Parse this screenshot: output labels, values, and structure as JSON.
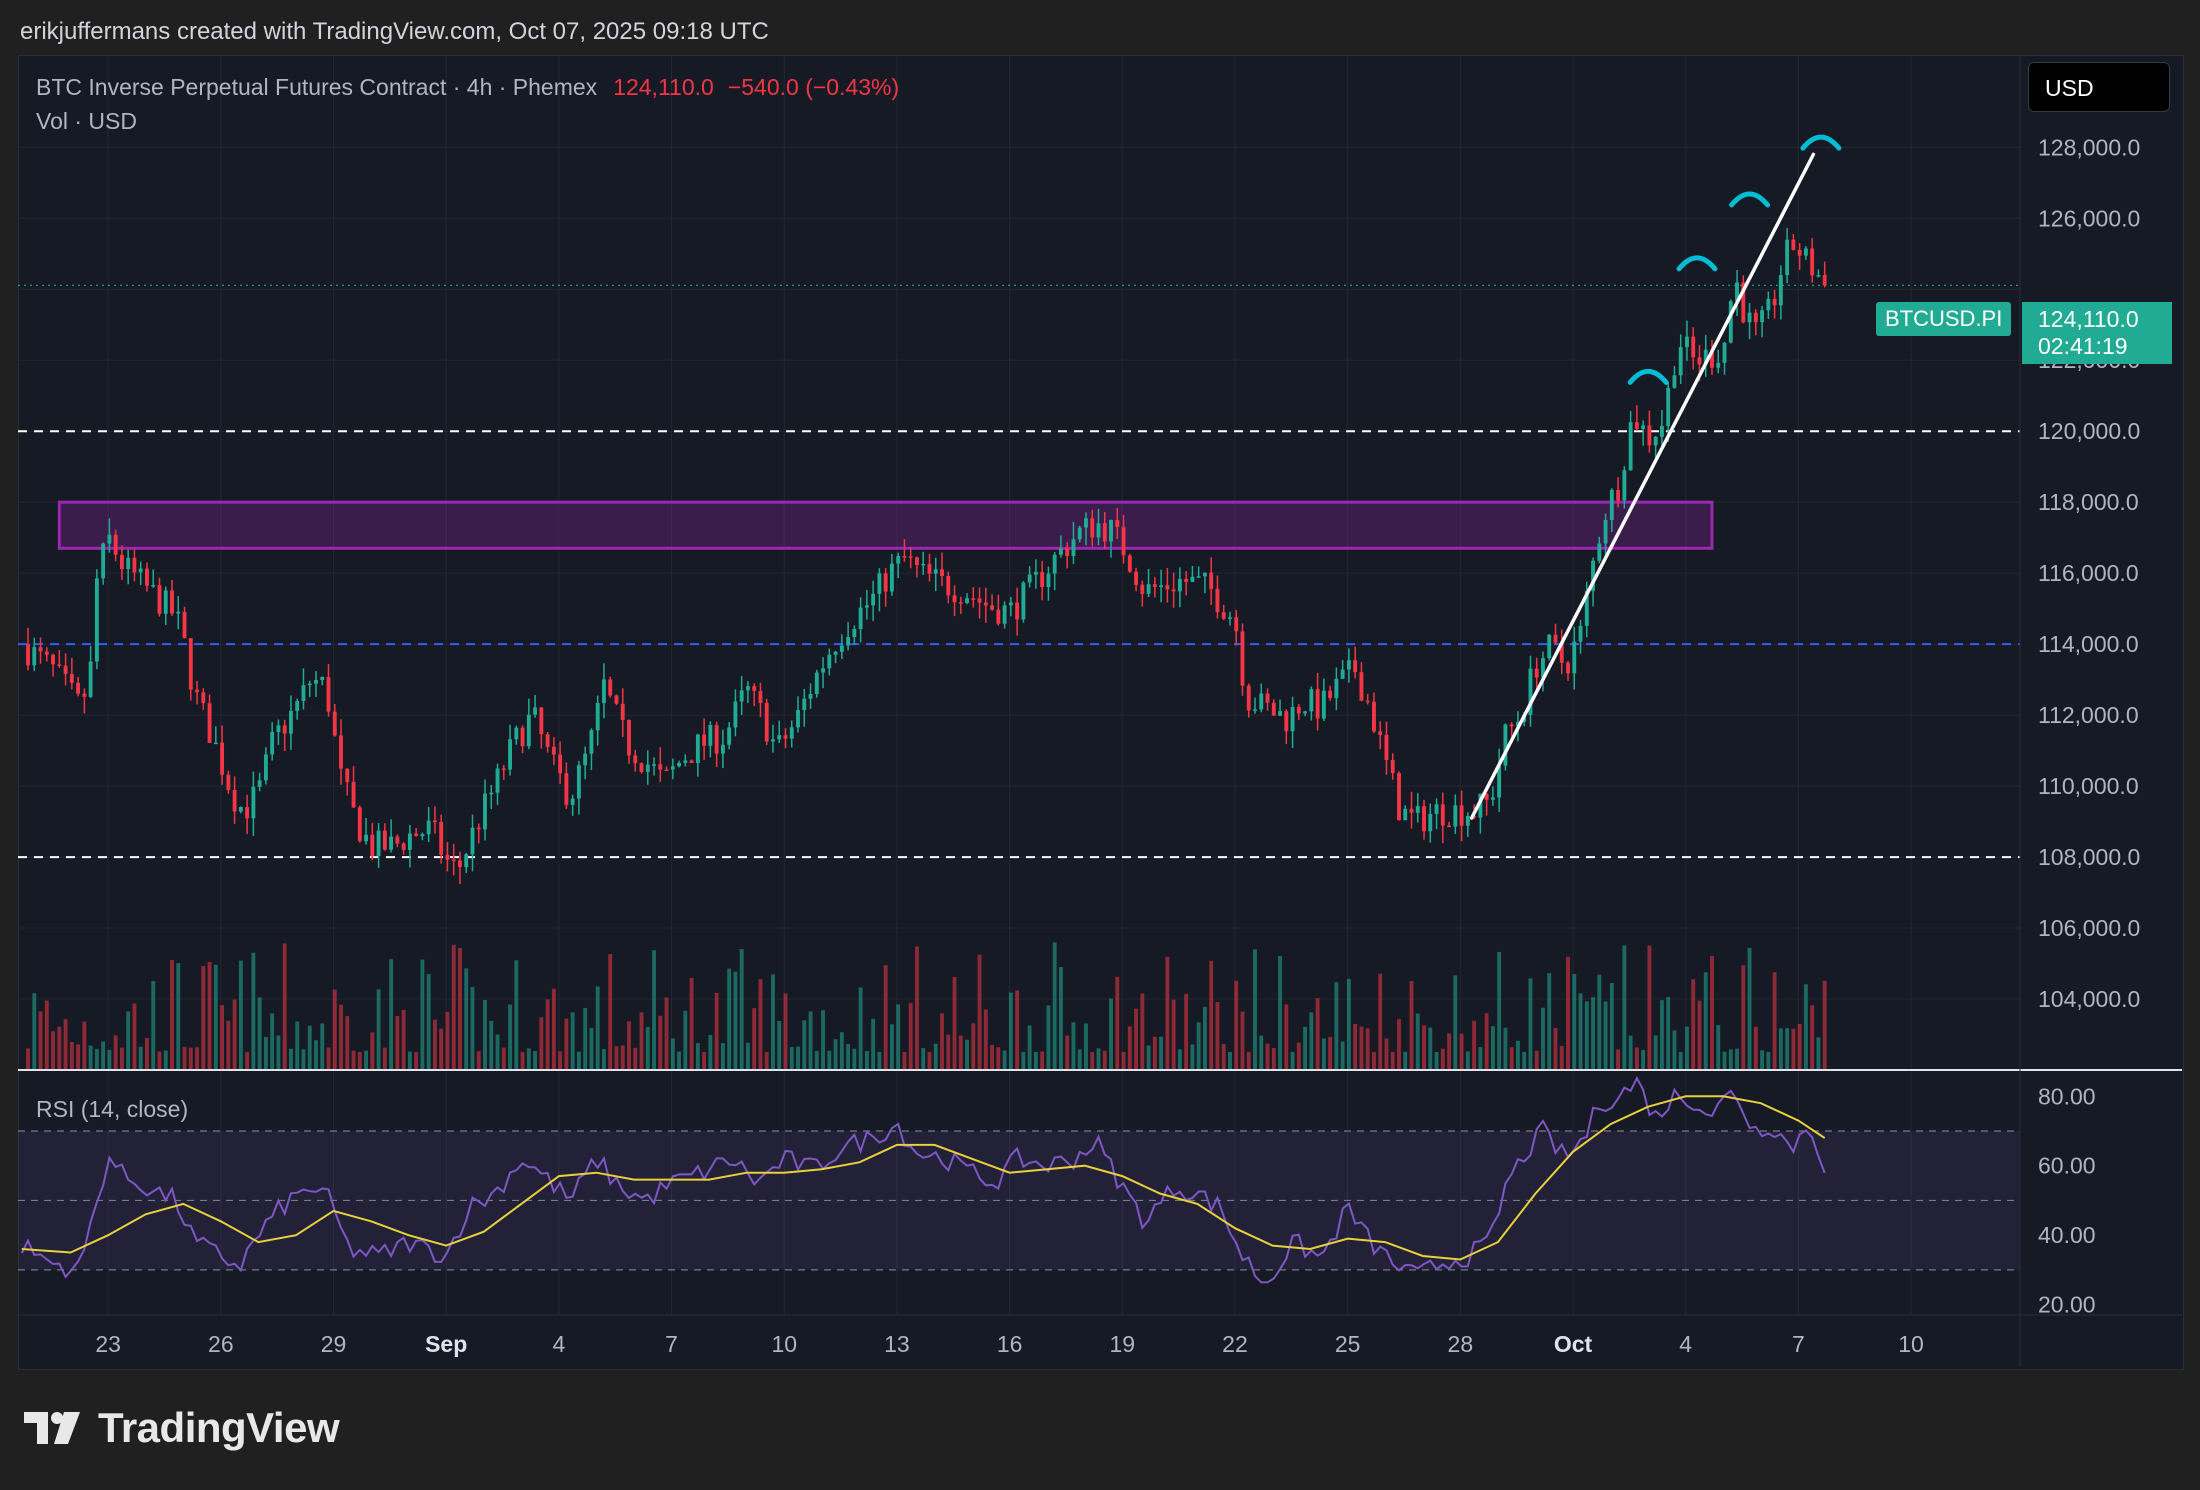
{
  "header": {
    "attribution": "erikjuffermans created with TradingView.com, Oct 07, 2025 09:18 UTC"
  },
  "legend": {
    "symbol_line": "BTC Inverse Perpetual Futures Contract · 4h · Phemex",
    "last_price": "124,110.0",
    "change": "−540.0 (−0.43%)",
    "volume_line": "Vol · USD"
  },
  "currency_button": "USD",
  "symbol_tag": "BTCUSD.PI",
  "price_tag": {
    "price": "124,110.0",
    "countdown": "02:41:19"
  },
  "rsi_label": "RSI (14, close)",
  "footer": {
    "brand": "TradingView"
  },
  "colors": {
    "up": "#22ab94",
    "down": "#f23645",
    "zone": "#9c27b0",
    "rsi": "#7e57c2",
    "rsi_ma": "#e8d13a",
    "arc": "#00bcd4"
  },
  "chart_data": [
    {
      "type": "candlestick",
      "timeframe": "4h",
      "price_axis_ticks": [
        "128,000.0",
        "126,000.0",
        "122,000.0",
        "120,000.0",
        "118,000.0",
        "116,000.0",
        "114,000.0",
        "112,000.0",
        "110,000.0",
        "108,000.0",
        "106,000.0",
        "104,000.0"
      ],
      "price_axis_clipped_top": "130,000.0",
      "ylim": [
        102000,
        130600
      ],
      "x_ticks": [
        "23",
        "26",
        "29",
        "Sep",
        "4",
        "7",
        "10",
        "13",
        "16",
        "19",
        "22",
        "25",
        "28",
        "Oct",
        "4",
        "7",
        "10"
      ],
      "x_tick_days": [
        0,
        3,
        6,
        9,
        12,
        15,
        18,
        21,
        24,
        27,
        30,
        33,
        36,
        39,
        42,
        45,
        48
      ],
      "x_range_days": [
        -2.4,
        50.9
      ],
      "price_path": [
        [
          -2.3,
          114000
        ],
        [
          -1.5,
          113300
        ],
        [
          -0.8,
          112300
        ],
        [
          -0.5,
          112800
        ],
        [
          -0.3,
          115800
        ],
        [
          0,
          117000
        ],
        [
          0.4,
          116200
        ],
        [
          1,
          115600
        ],
        [
          1.8,
          114800
        ],
        [
          2,
          114100
        ],
        [
          2.3,
          112600
        ],
        [
          2.8,
          111300
        ],
        [
          3.3,
          109800
        ],
        [
          3.6,
          109300
        ],
        [
          4,
          109800
        ],
        [
          4.4,
          111300
        ],
        [
          5,
          112200
        ],
        [
          5.4,
          113000
        ],
        [
          5.8,
          112800
        ],
        [
          6.2,
          110200
        ],
        [
          6.6,
          109000
        ],
        [
          7,
          108300
        ],
        [
          7.6,
          108300
        ],
        [
          8,
          108600
        ],
        [
          8.6,
          108800
        ],
        [
          9,
          107900
        ],
        [
          9.3,
          107600
        ],
        [
          9.8,
          108900
        ],
        [
          10.3,
          110000
        ],
        [
          10.8,
          111200
        ],
        [
          11.3,
          112000
        ],
        [
          11.8,
          110600
        ],
        [
          12.3,
          109700
        ],
        [
          12.8,
          111000
        ],
        [
          13.2,
          112800
        ],
        [
          13.8,
          111200
        ],
        [
          14.4,
          110600
        ],
        [
          14.8,
          110100
        ],
        [
          15.3,
          110800
        ],
        [
          15.8,
          111200
        ],
        [
          16.4,
          111400
        ],
        [
          17,
          112700
        ],
        [
          17.4,
          112000
        ],
        [
          17.8,
          111000
        ],
        [
          18.3,
          111800
        ],
        [
          18.8,
          113000
        ],
        [
          19.3,
          114000
        ],
        [
          19.8,
          114700
        ],
        [
          20.3,
          115200
        ],
        [
          20.8,
          116000
        ],
        [
          21.2,
          116400
        ],
        [
          21.6,
          116000
        ],
        [
          22.2,
          115700
        ],
        [
          22.8,
          115500
        ],
        [
          23.4,
          115100
        ],
        [
          24,
          114900
        ],
        [
          24.6,
          115600
        ],
        [
          25.2,
          116400
        ],
        [
          25.8,
          117100
        ],
        [
          26.3,
          117400
        ],
        [
          26.7,
          117200
        ],
        [
          27.1,
          116600
        ],
        [
          27.6,
          115500
        ],
        [
          28,
          115600
        ],
        [
          28.6,
          115800
        ],
        [
          29.3,
          115600
        ],
        [
          30,
          114700
        ],
        [
          30.3,
          112500
        ],
        [
          30.8,
          112200
        ],
        [
          31.4,
          111900
        ],
        [
          31.8,
          112400
        ],
        [
          32.3,
          112200
        ],
        [
          32.8,
          112900
        ],
        [
          33.2,
          113300
        ],
        [
          33.6,
          112200
        ],
        [
          34,
          110700
        ],
        [
          34.4,
          109300
        ],
        [
          34.8,
          109000
        ],
        [
          35.4,
          109300
        ],
        [
          36,
          109300
        ],
        [
          36.4,
          109300
        ],
        [
          36.8,
          109600
        ],
        [
          37.2,
          111400
        ],
        [
          37.6,
          112000
        ],
        [
          38,
          113400
        ],
        [
          38.4,
          113900
        ],
        [
          38.8,
          113400
        ],
        [
          39.2,
          114300
        ],
        [
          39.5,
          116100
        ],
        [
          39.8,
          117600
        ],
        [
          40.2,
          118500
        ],
        [
          40.6,
          120500
        ],
        [
          41,
          119800
        ],
        [
          41.4,
          120300
        ],
        [
          41.8,
          122600
        ],
        [
          42.2,
          122000
        ],
        [
          42.6,
          122100
        ],
        [
          43,
          122300
        ],
        [
          43.3,
          124400
        ],
        [
          43.6,
          123200
        ],
        [
          43.9,
          122700
        ],
        [
          44.3,
          123500
        ],
        [
          44.6,
          124800
        ],
        [
          44.9,
          125300
        ],
        [
          45.2,
          124800
        ],
        [
          45.5,
          124450
        ],
        [
          45.7,
          124110
        ]
      ],
      "volume_scale_note": "volume bars shown without printed values",
      "price_levels": [
        {
          "price": 120000,
          "style": "dashed",
          "color": "#ffffff"
        },
        {
          "price": 108000,
          "style": "dashed",
          "color": "#ffffff"
        },
        {
          "price": 114000,
          "style": "dashed",
          "color": "#2962ff"
        },
        {
          "price": 124110,
          "style": "dotted",
          "color": "#22ab94"
        }
      ],
      "zone": {
        "x_from": -1.3,
        "x_to": 42.7,
        "price_low": 116700,
        "price_high": 118000
      },
      "trendline": {
        "from": [
          36.3,
          109100
        ],
        "to": [
          45.4,
          127800
        ],
        "color": "#ffffff"
      },
      "arcs": [
        {
          "day": 41.0,
          "price": 121600
        },
        {
          "day": 42.3,
          "price": 124800
        },
        {
          "day": 43.7,
          "price": 126600
        },
        {
          "day": 45.6,
          "price": 128200
        }
      ]
    },
    {
      "type": "line",
      "name": "RSI (14, close)",
      "y_ticks": [
        "80.00",
        "60.00",
        "40.00",
        "20.00"
      ],
      "ylim": [
        17,
        87
      ],
      "bands": [
        30,
        50,
        70
      ],
      "rsi_path": [
        [
          -2.3,
          37
        ],
        [
          -1.5,
          32
        ],
        [
          -0.8,
          30
        ],
        [
          -0.4,
          45
        ],
        [
          0,
          63
        ],
        [
          0.4,
          57
        ],
        [
          1,
          54
        ],
        [
          1.8,
          50
        ],
        [
          2.3,
          38
        ],
        [
          3,
          34
        ],
        [
          3.5,
          31
        ],
        [
          4,
          40
        ],
        [
          4.6,
          48
        ],
        [
          5.4,
          54
        ],
        [
          5.9,
          50
        ],
        [
          6.4,
          36
        ],
        [
          7.2,
          34
        ],
        [
          8,
          38
        ],
        [
          9,
          34
        ],
        [
          9.6,
          48
        ],
        [
          10.3,
          52
        ],
        [
          11,
          62
        ],
        [
          11.5,
          58
        ],
        [
          12.3,
          50
        ],
        [
          13,
          62
        ],
        [
          13.6,
          54
        ],
        [
          14.3,
          50
        ],
        [
          15,
          55
        ],
        [
          15.8,
          58
        ],
        [
          16.6,
          62
        ],
        [
          17.3,
          55
        ],
        [
          18,
          62
        ],
        [
          18.8,
          59
        ],
        [
          19.5,
          65
        ],
        [
          20.3,
          68
        ],
        [
          21,
          72
        ],
        [
          21.5,
          64
        ],
        [
          22.3,
          62
        ],
        [
          23,
          58
        ],
        [
          23.6,
          55
        ],
        [
          24.2,
          62
        ],
        [
          25,
          60
        ],
        [
          25.7,
          62
        ],
        [
          26.3,
          67
        ],
        [
          27,
          54
        ],
        [
          27.6,
          44
        ],
        [
          28.4,
          54
        ],
        [
          29,
          52
        ],
        [
          29.6,
          48
        ],
        [
          30.2,
          34
        ],
        [
          30.8,
          26
        ],
        [
          31.6,
          38
        ],
        [
          32.3,
          33
        ],
        [
          33,
          48
        ],
        [
          33.6,
          38
        ],
        [
          34.2,
          32
        ],
        [
          34.8,
          28
        ],
        [
          35.5,
          32
        ],
        [
          36.2,
          34
        ],
        [
          36.8,
          38
        ],
        [
          37.2,
          54
        ],
        [
          37.7,
          63
        ],
        [
          38.2,
          70
        ],
        [
          38.8,
          62
        ],
        [
          39.3,
          68
        ],
        [
          39.7,
          78
        ],
        [
          40.2,
          80
        ],
        [
          40.7,
          84
        ],
        [
          41.2,
          74
        ],
        [
          41.7,
          80
        ],
        [
          42.2,
          79
        ],
        [
          42.7,
          75
        ],
        [
          43.3,
          82
        ],
        [
          43.8,
          70
        ],
        [
          44.3,
          72
        ],
        [
          44.8,
          65
        ],
        [
          45.3,
          72
        ],
        [
          45.7,
          60
        ]
      ],
      "ma_path": [
        [
          -2.3,
          36
        ],
        [
          -1,
          35
        ],
        [
          0,
          40
        ],
        [
          1,
          46
        ],
        [
          2,
          49
        ],
        [
          3,
          44
        ],
        [
          4,
          38
        ],
        [
          5,
          40
        ],
        [
          6,
          47
        ],
        [
          7,
          44
        ],
        [
          8,
          40
        ],
        [
          9,
          37
        ],
        [
          10,
          41
        ],
        [
          11,
          49
        ],
        [
          12,
          57
        ],
        [
          13,
          58
        ],
        [
          14,
          56
        ],
        [
          15,
          56
        ],
        [
          16,
          56
        ],
        [
          17,
          58
        ],
        [
          18,
          58
        ],
        [
          19,
          59
        ],
        [
          20,
          61
        ],
        [
          21,
          66
        ],
        [
          22,
          66
        ],
        [
          23,
          62
        ],
        [
          24,
          58
        ],
        [
          25,
          59
        ],
        [
          26,
          60
        ],
        [
          27,
          57
        ],
        [
          28,
          52
        ],
        [
          29,
          49
        ],
        [
          30,
          42
        ],
        [
          31,
          37
        ],
        [
          32,
          36
        ],
        [
          33,
          39
        ],
        [
          34,
          38
        ],
        [
          35,
          34
        ],
        [
          36,
          33
        ],
        [
          37,
          38
        ],
        [
          38,
          52
        ],
        [
          39,
          64
        ],
        [
          40,
          72
        ],
        [
          41,
          77
        ],
        [
          42,
          80
        ],
        [
          43,
          80
        ],
        [
          44,
          78
        ],
        [
          45,
          73
        ],
        [
          45.7,
          68
        ]
      ]
    }
  ]
}
